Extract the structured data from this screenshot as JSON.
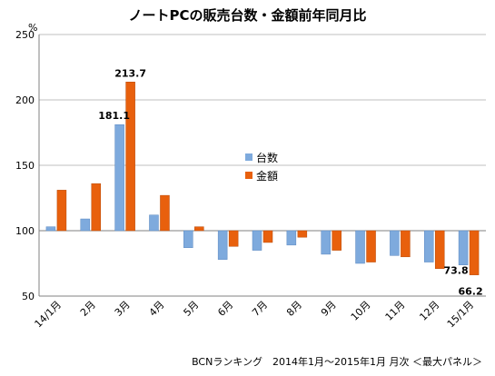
{
  "chart_data": {
    "type": "bar",
    "title": "ノートPCの販売台数・金額前年同月比",
    "unit": "%",
    "ylim": [
      50,
      250
    ],
    "yticks": [
      50,
      100,
      150,
      200,
      250
    ],
    "grid": true,
    "legend_position": "center",
    "categories": [
      "14/1月",
      "2月",
      "3月",
      "4月",
      "5月",
      "6月",
      "7月",
      "8月",
      "9月",
      "10月",
      "11月",
      "12月",
      "15/1月"
    ],
    "series": [
      {
        "name": "台数",
        "color": "#7eaadd",
        "values": [
          103,
          109,
          181.1,
          112,
          87,
          78,
          85,
          89,
          82,
          75,
          81,
          76,
          73.8
        ]
      },
      {
        "name": "金額",
        "color": "#e8600d",
        "values": [
          131,
          136,
          213.7,
          127,
          103,
          88,
          91,
          95,
          85,
          76,
          80,
          71,
          66.2
        ]
      }
    ],
    "annotations": [
      {
        "category": "3月",
        "series": "台数",
        "text": "181.1"
      },
      {
        "category": "3月",
        "series": "金額",
        "text": "213.7"
      },
      {
        "category": "15/1月",
        "series": "台数",
        "text": "73.8"
      },
      {
        "category": "15/1月",
        "series": "金額",
        "text": "66.2"
      }
    ],
    "footnote": "BCNランキング　2014年1月〜2015年1月 月次 ＜最大パネル＞"
  }
}
